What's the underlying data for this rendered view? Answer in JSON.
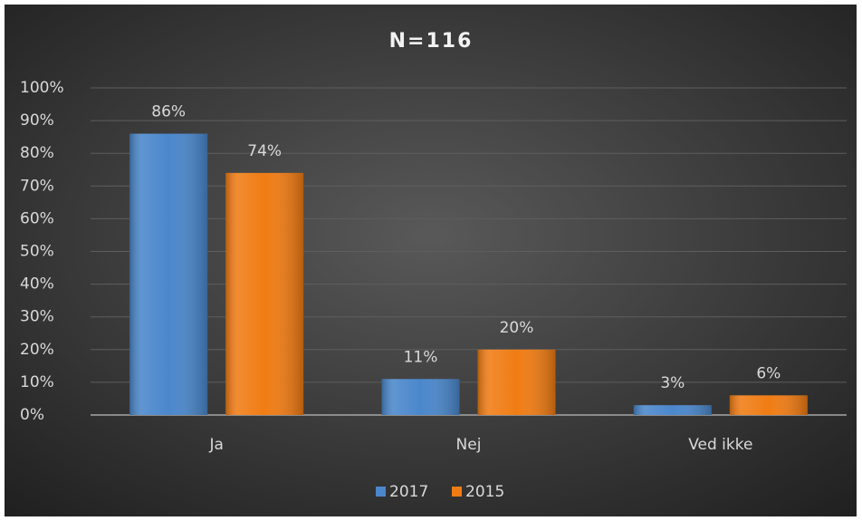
{
  "chart_data": {
    "type": "bar",
    "title": "N=116",
    "categories": [
      "Ja",
      "Nej",
      "Ved ikke"
    ],
    "series": [
      {
        "name": "2017",
        "color": "#4a87cb",
        "values": [
          86,
          11,
          3
        ],
        "value_labels": [
          "86%",
          "11%",
          "3%"
        ]
      },
      {
        "name": "2015",
        "color": "#f07c14",
        "values": [
          74,
          20,
          6
        ],
        "value_labels": [
          "74%",
          "20%",
          "6%"
        ]
      }
    ],
    "ylim": [
      0,
      100
    ],
    "yticks": [
      {
        "value": 0,
        "label": "0%"
      },
      {
        "value": 10,
        "label": "10%"
      },
      {
        "value": 20,
        "label": "20%"
      },
      {
        "value": 30,
        "label": "30%"
      },
      {
        "value": 40,
        "label": "40%"
      },
      {
        "value": 50,
        "label": "50%"
      },
      {
        "value": 60,
        "label": "60%"
      },
      {
        "value": 70,
        "label": "70%"
      },
      {
        "value": 80,
        "label": "80%"
      },
      {
        "value": 90,
        "label": "90%"
      },
      {
        "value": 100,
        "label": "100%"
      }
    ],
    "grid": true,
    "legend": "bottom"
  }
}
